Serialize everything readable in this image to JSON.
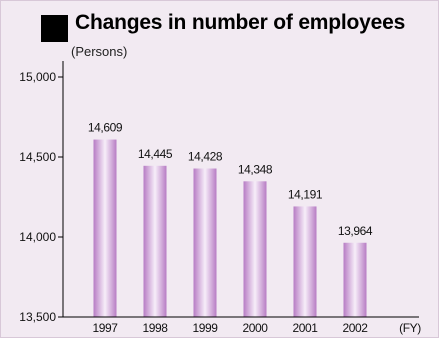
{
  "header": {
    "title": "Changes in number of employees",
    "unit": "(Persons)"
  },
  "chart_data": {
    "type": "bar",
    "title": "Changes in number of employees",
    "ylabel": "(Persons)",
    "xlabel": "(FY)",
    "categories": [
      "1997",
      "1998",
      "1999",
      "2000",
      "2001",
      "2002"
    ],
    "values": [
      14609,
      14445,
      14428,
      14348,
      14191,
      13964
    ],
    "value_labels": [
      "14,609",
      "14,445",
      "14,428",
      "14,348",
      "14,191",
      "13,964"
    ],
    "ylim": [
      13500,
      15100
    ],
    "yticks": [
      13500,
      14000,
      14500,
      15000
    ],
    "ytick_labels": [
      "13,500",
      "14,000",
      "14,500",
      "15,000"
    ],
    "grid": false,
    "colors": {
      "bar_edge": "#b77cc4",
      "bar_center": "#f7eef9",
      "background": "#f2eaf2"
    }
  }
}
